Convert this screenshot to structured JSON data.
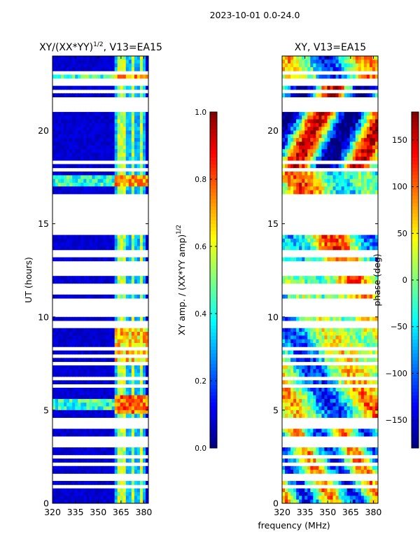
{
  "suptitle": "2023-10-01 0.0-24.0",
  "shared_xlabel": "frequency (MHz)",
  "colormap": [
    "#00007f",
    "#0000ff",
    "#007fff",
    "#00ffff",
    "#7fff7f",
    "#ffff00",
    "#ff7f00",
    "#ff0000",
    "#7f0000"
  ],
  "nan_color": "#ffffff",
  "chart_data": [
    {
      "type": "heatmap",
      "title_main": "XY/(XX*YY)",
      "title_sup": "1/2",
      "title_tail": ", V13=EA15",
      "xlabel": "",
      "ylabel": "UT (hours)",
      "xlim": [
        320,
        383
      ],
      "ylim": [
        0,
        24
      ],
      "xticks": [
        320,
        335,
        350,
        365,
        380
      ],
      "yticks": [
        0,
        5,
        10,
        15,
        20
      ],
      "colorbar": {
        "label_main": "XY amp. / (XX*YY amp)",
        "label_sup": "1/2",
        "range": [
          0.0,
          1.0
        ],
        "ticks": [
          "0.0",
          "0.2",
          "0.4",
          "0.6",
          "0.8",
          "1.0"
        ]
      },
      "description_values": {
        "background_level": 0.05,
        "bright_channels_MHz": [
          364,
          367,
          373,
          378
        ],
        "bright_channel_level": 0.45,
        "bright_row_UT": [
          22.8,
          17.3,
          5.3
        ]
      }
    },
    {
      "type": "heatmap",
      "title_main": "XY",
      "title_sup": "",
      "title_tail": ", V13=EA15",
      "xlabel": "frequency (MHz)",
      "ylabel": "",
      "xlim": [
        320,
        383
      ],
      "ylim": [
        0,
        24
      ],
      "xticks": [
        320,
        335,
        350,
        365,
        380
      ],
      "yticks": [
        0,
        5,
        10,
        15,
        20
      ],
      "colorbar": {
        "label_main": "phase (deg)",
        "label_sup": "",
        "range": [
          -180,
          180
        ],
        "ticks": [
          "−150",
          "−100",
          "−50",
          "0",
          "50",
          "100",
          "150"
        ]
      },
      "description_values": {
        "phase_range_deg": [
          -180,
          180
        ]
      }
    }
  ],
  "gap_rows_UT": [
    0.95,
    1.35,
    1.55,
    2.1,
    2.45,
    3.05,
    3.35,
    3.55,
    4.05,
    4.25,
    4.45,
    6.0,
    6.35,
    6.7,
    7.2,
    7.45,
    7.85,
    8.3,
    8.6,
    9.5,
    9.75,
    10.05,
    10.25,
    10.5,
    10.7,
    10.95,
    11.25,
    11.5,
    11.75,
    12.0,
    12.25,
    12.5,
    12.75,
    12.95,
    13.25,
    13.5,
    14.0,
    14.2,
    14.45,
    14.65,
    14.9,
    15.1,
    15.3,
    15.5,
    15.75,
    15.95,
    16.15,
    16.35,
    16.55,
    17.85,
    18.3,
    18.6,
    18.8,
    19.0,
    20.4,
    21.1,
    21.35,
    21.55,
    21.75,
    22.05,
    22.55,
    22.65,
    23.15
  ]
}
